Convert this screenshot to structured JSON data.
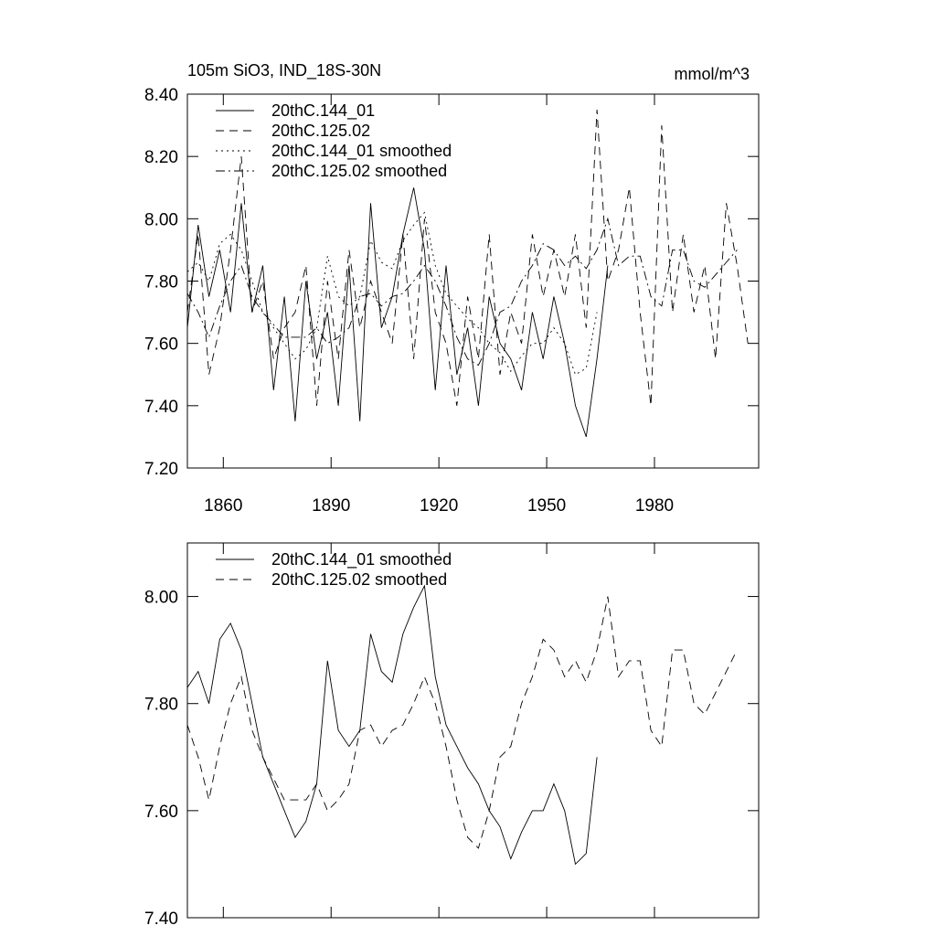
{
  "chart_data": [
    {
      "type": "line",
      "title": "105m SiO3, IND_18S-30N",
      "units": "mmol/m^3",
      "x": [
        1850,
        1853,
        1856,
        1859,
        1862,
        1865,
        1868,
        1871,
        1874,
        1877,
        1880,
        1883,
        1886,
        1889,
        1892,
        1895,
        1898,
        1901,
        1904,
        1907,
        1910,
        1913,
        1916,
        1919,
        1922,
        1925,
        1928,
        1931,
        1934,
        1937,
        1940,
        1943,
        1946,
        1949,
        1952,
        1955,
        1958,
        1961,
        1964,
        1967,
        1970,
        1973,
        1976,
        1979,
        1982,
        1985,
        1988,
        1991,
        1994,
        1997,
        2000,
        2003,
        2006
      ],
      "xlim": [
        1850,
        2009
      ],
      "xticks": [
        1860,
        1890,
        1920,
        1950,
        1980
      ],
      "ylim": [
        7.2,
        8.4
      ],
      "yticks": [
        {
          "value": 7.2,
          "label": "7.20"
        },
        {
          "value": 7.4,
          "label": "7.40"
        },
        {
          "value": 7.6,
          "label": "7.60"
        },
        {
          "value": 7.8,
          "label": "7.80"
        },
        {
          "value": 8.0,
          "label": "8.00"
        },
        {
          "value": 8.2,
          "label": "8.20"
        },
        {
          "value": 8.4,
          "label": "8.40"
        }
      ],
      "legend": "upper left",
      "series": [
        {
          "name": "20thC.144_01",
          "color": "#000000",
          "dash": "solid",
          "values": [
            7.65,
            7.98,
            7.75,
            7.9,
            7.7,
            8.05,
            7.7,
            7.85,
            7.45,
            7.75,
            7.35,
            7.8,
            7.55,
            7.7,
            7.4,
            7.85,
            7.35,
            8.05,
            7.65,
            7.75,
            7.95,
            8.1,
            7.9,
            7.45,
            7.85,
            7.5,
            7.65,
            7.4,
            7.75,
            7.6,
            7.55,
            7.45,
            7.7,
            7.55,
            7.75,
            7.6,
            7.4,
            7.3,
            7.55,
            7.85,
            null,
            null,
            null,
            null,
            null,
            null,
            null,
            null,
            null,
            null,
            null,
            null,
            null
          ]
        },
        {
          "name": "20thC.125.02",
          "color": "#000000",
          "dash": "dashed",
          "values": [
            7.7,
            7.95,
            7.5,
            7.65,
            7.9,
            8.2,
            7.7,
            7.8,
            7.55,
            7.65,
            7.7,
            7.85,
            7.4,
            7.8,
            7.55,
            7.9,
            7.65,
            7.8,
            7.7,
            7.6,
            7.95,
            7.55,
            8.0,
            7.7,
            7.6,
            7.4,
            7.75,
            7.55,
            7.95,
            7.5,
            7.7,
            7.6,
            7.95,
            7.75,
            7.9,
            7.75,
            7.95,
            7.65,
            8.35,
            7.8,
            7.9,
            8.1,
            7.7,
            7.4,
            8.3,
            7.7,
            7.95,
            7.7,
            7.85,
            7.55,
            8.05,
            7.85,
            7.6
          ]
        },
        {
          "name": "20thC.144_01 smoothed",
          "color": "#000000",
          "dash": "dotted",
          "values": [
            7.83,
            7.86,
            7.8,
            7.92,
            7.95,
            7.9,
            7.8,
            7.7,
            7.65,
            7.6,
            7.55,
            7.58,
            7.65,
            7.88,
            7.75,
            7.72,
            7.75,
            7.93,
            7.86,
            7.84,
            7.93,
            7.98,
            8.02,
            7.85,
            7.76,
            7.72,
            7.68,
            7.65,
            7.6,
            7.57,
            7.51,
            7.56,
            7.6,
            7.6,
            7.65,
            7.6,
            7.5,
            7.52,
            7.7,
            null,
            null,
            null,
            null,
            null,
            null,
            null,
            null,
            null,
            null,
            null,
            null,
            null,
            null
          ]
        },
        {
          "name": "20thC.125.02 smoothed",
          "color": "#000000",
          "dash": "dashdot",
          "values": [
            7.76,
            7.7,
            7.62,
            7.72,
            7.8,
            7.85,
            7.75,
            7.7,
            7.66,
            7.62,
            7.62,
            7.62,
            7.65,
            7.6,
            7.62,
            7.65,
            7.75,
            7.76,
            7.72,
            7.75,
            7.76,
            7.8,
            7.85,
            7.8,
            7.72,
            7.62,
            7.55,
            7.53,
            7.6,
            7.7,
            7.72,
            7.8,
            7.85,
            7.92,
            7.9,
            7.85,
            7.88,
            7.84,
            7.9,
            8.0,
            7.85,
            7.88,
            7.88,
            7.75,
            7.72,
            7.9,
            7.9,
            7.8,
            7.78,
            7.82,
            7.86,
            7.9,
            null
          ]
        }
      ]
    },
    {
      "type": "line",
      "x": [
        1850,
        1853,
        1856,
        1859,
        1862,
        1865,
        1868,
        1871,
        1874,
        1877,
        1880,
        1883,
        1886,
        1889,
        1892,
        1895,
        1898,
        1901,
        1904,
        1907,
        1910,
        1913,
        1916,
        1919,
        1922,
        1925,
        1928,
        1931,
        1934,
        1937,
        1940,
        1943,
        1946,
        1949,
        1952,
        1955,
        1958,
        1961,
        1964,
        1967,
        1970,
        1973,
        1976,
        1979,
        1982,
        1985,
        1988,
        1991,
        1994,
        1997,
        2000,
        2003,
        2006
      ],
      "xlim": [
        1850,
        2009
      ],
      "xticks": [
        1860,
        1890,
        1920,
        1950,
        1980
      ],
      "ylim": [
        7.4,
        8.1
      ],
      "yticks": [
        {
          "value": 7.4,
          "label": "7.40"
        },
        {
          "value": 7.6,
          "label": "7.60"
        },
        {
          "value": 7.8,
          "label": "7.80"
        },
        {
          "value": 8.0,
          "label": "8.00"
        }
      ],
      "legend": "upper left",
      "series": [
        {
          "name": "20thC.144_01 smoothed",
          "color": "#000000",
          "dash": "solid",
          "values": [
            7.83,
            7.86,
            7.8,
            7.92,
            7.95,
            7.9,
            7.8,
            7.7,
            7.65,
            7.6,
            7.55,
            7.58,
            7.65,
            7.88,
            7.75,
            7.72,
            7.75,
            7.93,
            7.86,
            7.84,
            7.93,
            7.98,
            8.02,
            7.85,
            7.76,
            7.72,
            7.68,
            7.65,
            7.6,
            7.57,
            7.51,
            7.56,
            7.6,
            7.6,
            7.65,
            7.6,
            7.5,
            7.52,
            7.7,
            null,
            null,
            null,
            null,
            null,
            null,
            null,
            null,
            null,
            null,
            null,
            null,
            null,
            null
          ]
        },
        {
          "name": "20thC.125.02 smoothed",
          "color": "#000000",
          "dash": "dashed",
          "values": [
            7.76,
            7.7,
            7.62,
            7.72,
            7.8,
            7.85,
            7.75,
            7.7,
            7.66,
            7.62,
            7.62,
            7.62,
            7.65,
            7.6,
            7.62,
            7.65,
            7.75,
            7.76,
            7.72,
            7.75,
            7.76,
            7.8,
            7.85,
            7.8,
            7.72,
            7.62,
            7.55,
            7.53,
            7.6,
            7.7,
            7.72,
            7.8,
            7.85,
            7.92,
            7.9,
            7.85,
            7.88,
            7.84,
            7.9,
            8.0,
            7.85,
            7.88,
            7.88,
            7.75,
            7.72,
            7.9,
            7.9,
            7.8,
            7.78,
            7.82,
            7.86,
            7.9,
            null
          ]
        }
      ]
    }
  ]
}
